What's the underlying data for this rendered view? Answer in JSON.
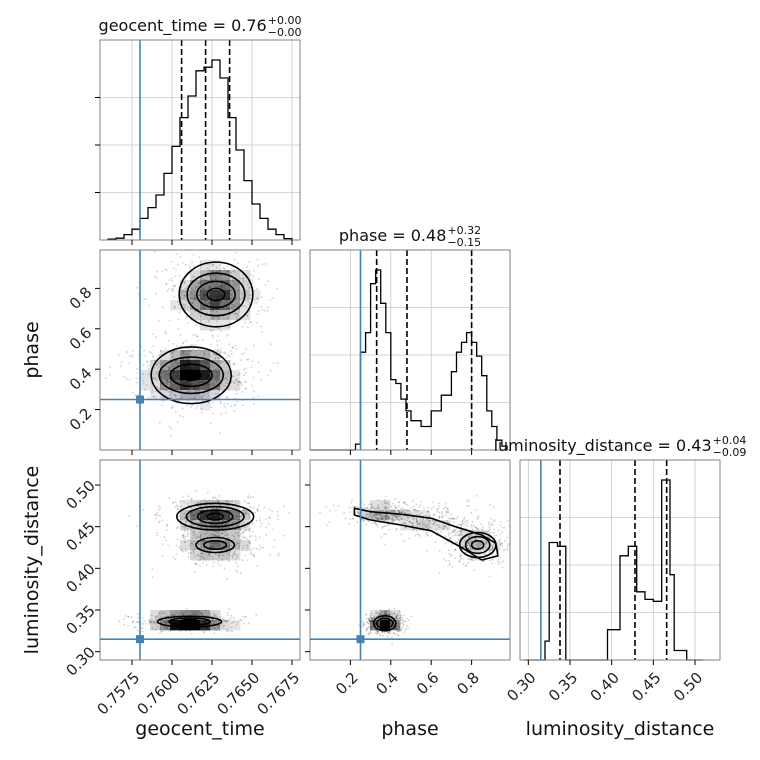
{
  "chart_data": {
    "type": "scatter",
    "variant": "corner-plot",
    "parameters": [
      "geocent_time",
      "phase",
      "luminosity_distance"
    ],
    "truths": {
      "geocent_time": 0.758,
      "phase": 0.25,
      "luminosity_distance": 0.315
    },
    "colors": {
      "truth": "#4682b4",
      "hist": "#000000",
      "grid": "#c8c8c8",
      "frame": "#808080"
    },
    "titles": [
      {
        "param": "geocent_time",
        "text": "geocent_time = 0.76",
        "plus": "+0.00",
        "minus": "−0.00"
      },
      {
        "param": "phase",
        "text": "phase = 0.48",
        "plus": "+0.32",
        "minus": "−0.15"
      },
      {
        "param": "luminosity_distance",
        "text": "luminosity_distance = 0.43",
        "plus": "+0.04",
        "minus": "−0.09"
      }
    ],
    "axes": {
      "geocent_time": {
        "range": [
          0.7555,
          0.768
        ],
        "ticks": [
          0.7575,
          0.76,
          0.7625,
          0.765,
          0.7675
        ],
        "tick_labels": [
          "0.7575",
          "0.7600",
          "0.7625",
          "0.7650",
          "0.7675"
        ],
        "label": "geocent_time"
      },
      "phase": {
        "range": [
          0.0,
          0.99
        ],
        "ticks": [
          0.2,
          0.4,
          0.6,
          0.8
        ],
        "tick_labels": [
          "0.2",
          "0.4",
          "0.6",
          "0.8"
        ],
        "label": "phase"
      },
      "luminosity_distance": {
        "range": [
          0.29,
          0.53
        ],
        "ticks": [
          0.3,
          0.35,
          0.4,
          0.45,
          0.5
        ],
        "tick_labels": [
          "0.30",
          "0.35",
          "0.40",
          "0.45",
          "0.50"
        ],
        "label": "luminosity_distance"
      }
    },
    "histograms": [
      {
        "param": "geocent_time",
        "bin_edges": [
          0.756,
          0.7565,
          0.757,
          0.7575,
          0.758,
          0.7585,
          0.759,
          0.7595,
          0.76,
          0.7605,
          0.761,
          0.7615,
          0.762,
          0.7625,
          0.763,
          0.7635,
          0.764,
          0.7645,
          0.765,
          0.7655,
          0.766,
          0.7665,
          0.767,
          0.7675
        ],
        "counts": [
          0.005,
          0.01,
          0.03,
          0.06,
          0.12,
          0.18,
          0.25,
          0.37,
          0.52,
          0.68,
          0.8,
          0.94,
          0.96,
          1.0,
          0.9,
          0.68,
          0.5,
          0.33,
          0.2,
          0.12,
          0.06,
          0.03,
          0.008
        ],
        "quantiles": [
          0.7606,
          0.7621,
          0.7636
        ]
      },
      {
        "param": "phase",
        "bin_edges": [
          0.0,
          0.225,
          0.25,
          0.275,
          0.3,
          0.325,
          0.35,
          0.375,
          0.4,
          0.425,
          0.45,
          0.475,
          0.5,
          0.55,
          0.6,
          0.65,
          0.7,
          0.725,
          0.75,
          0.775,
          0.8,
          0.825,
          0.85,
          0.875,
          0.9,
          0.925,
          0.95,
          0.975
        ],
        "counts": [
          0.0,
          0.03,
          0.5,
          0.6,
          0.85,
          0.92,
          0.75,
          0.6,
          0.36,
          0.34,
          0.26,
          0.2,
          0.15,
          0.12,
          0.2,
          0.28,
          0.4,
          0.5,
          0.55,
          0.6,
          0.55,
          0.48,
          0.38,
          0.2,
          0.12,
          0.05,
          0.02
        ],
        "quantiles": [
          0.33,
          0.48,
          0.8
        ]
      },
      {
        "param": "luminosity_distance",
        "bin_edges": [
          0.295,
          0.31,
          0.32,
          0.325,
          0.335,
          0.345,
          0.365,
          0.385,
          0.395,
          0.41,
          0.42,
          0.43,
          0.44,
          0.45,
          0.46,
          0.47,
          0.475,
          0.49,
          0.51
        ],
        "counts": [
          0.0,
          0.0,
          0.1,
          0.62,
          0.6,
          0.0,
          0.0,
          0.0,
          0.16,
          0.55,
          0.6,
          0.36,
          0.32,
          0.31,
          0.95,
          0.45,
          0.05,
          0.0
        ],
        "quantiles": [
          0.338,
          0.428,
          0.466
        ]
      }
    ],
    "scatter_clusters": [
      {
        "x": "geocent_time",
        "y": "phase",
        "blobs": [
          {
            "cx": 0.76275,
            "cy": 0.77,
            "sx": 0.0011,
            "sy": 0.075,
            "n": 500
          },
          {
            "cx": 0.7612,
            "cy": 0.37,
            "sx": 0.0013,
            "sy": 0.06,
            "n": 650
          }
        ]
      },
      {
        "x": "geocent_time",
        "y": "luminosity_distance",
        "blobs": [
          {
            "cx": 0.7627,
            "cy": 0.462,
            "sx": 0.0011,
            "sy": 0.008,
            "n": 450
          },
          {
            "cx": 0.7627,
            "cy": 0.428,
            "sx": 0.0011,
            "sy": 0.01,
            "n": 300
          },
          {
            "cx": 0.7611,
            "cy": 0.336,
            "sx": 0.0011,
            "sy": 0.004,
            "n": 450
          }
        ]
      },
      {
        "x": "phase",
        "y": "luminosity_distance",
        "blobs": [
          {
            "cx": 0.35,
            "cy": 0.467,
            "sx": 0.07,
            "sy": 0.005,
            "n": 250
          },
          {
            "cx": 0.58,
            "cy": 0.455,
            "sx": 0.1,
            "sy": 0.008,
            "n": 250
          },
          {
            "cx": 0.82,
            "cy": 0.43,
            "sx": 0.06,
            "sy": 0.01,
            "n": 300
          },
          {
            "cx": 0.37,
            "cy": 0.334,
            "sx": 0.035,
            "sy": 0.005,
            "n": 450
          }
        ]
      }
    ],
    "contour_levels": [
      {
        "x": "geocent_time",
        "y": "phase",
        "ellipses": [
          {
            "cx": 0.76275,
            "cy": 0.77,
            "rx": [
              0.00055,
              0.0012,
              0.0018,
              0.0023
            ],
            "ry": [
              0.03,
              0.065,
              0.105,
              0.16
            ]
          },
          {
            "cx": 0.7612,
            "cy": 0.37,
            "rx": [
              0.0006,
              0.0013,
              0.002,
              0.0025
            ],
            "ry": [
              0.025,
              0.055,
              0.09,
              0.14
            ]
          }
        ]
      },
      {
        "x": "geocent_time",
        "y": "luminosity_distance",
        "ellipses": [
          {
            "cx": 0.7627,
            "cy": 0.462,
            "rx": [
              0.0005,
              0.0011,
              0.0018,
              0.0024
            ],
            "ry": [
              0.004,
              0.008,
              0.012,
              0.016
            ]
          },
          {
            "cx": 0.7627,
            "cy": 0.428,
            "rx": [
              0.0007,
              0.0012
            ],
            "ry": [
              0.005,
              0.009
            ]
          },
          {
            "cx": 0.7611,
            "cy": 0.336,
            "rx": [
              0.0006,
              0.0013,
              0.002
            ],
            "ry": [
              0.0025,
              0.0045,
              0.0065
            ]
          }
        ]
      },
      {
        "x": "phase",
        "y": "luminosity_distance",
        "ellipses": [
          {
            "cx": 0.83,
            "cy": 0.428,
            "rx": [
              0.03,
              0.06,
              0.09
            ],
            "ry": [
              0.005,
              0.01,
              0.015
            ]
          },
          {
            "cx": 0.37,
            "cy": 0.334,
            "rx": [
              0.02,
              0.04,
              0.055
            ],
            "ry": [
              0.003,
              0.006,
              0.009
            ]
          }
        ],
        "band": {
          "points": [
            [
              0.22,
              0.472
            ],
            [
              0.3,
              0.468
            ],
            [
              0.45,
              0.465
            ],
            [
              0.6,
              0.46
            ],
            [
              0.72,
              0.45
            ],
            [
              0.85,
              0.44
            ],
            [
              0.92,
              0.43
            ],
            [
              0.93,
              0.415
            ],
            [
              0.85,
              0.41
            ],
            [
              0.75,
              0.425
            ],
            [
              0.6,
              0.445
            ],
            [
              0.45,
              0.452
            ],
            [
              0.3,
              0.458
            ],
            [
              0.22,
              0.464
            ]
          ]
        }
      }
    ]
  }
}
